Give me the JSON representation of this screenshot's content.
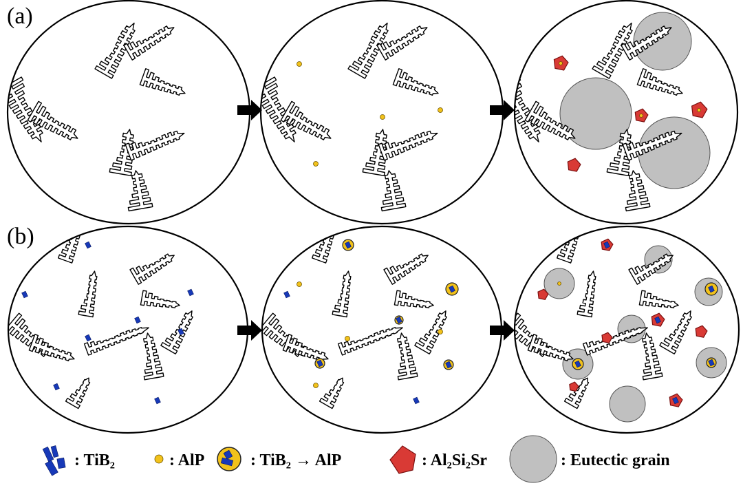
{
  "panels": [
    {
      "label": "(a)"
    },
    {
      "label": "(b)"
    }
  ],
  "legend": [
    {
      "symbol": "TiB2-particles",
      "text": ": TiB₂",
      "color": "#1739b8"
    },
    {
      "symbol": "AlP-particle",
      "text": ": AlP",
      "color": "#f2c21b"
    },
    {
      "symbol": "TiB2-on-AlP",
      "text": ": TiB₂ → AlP"
    },
    {
      "symbol": "Al2Si2Sr-pentagon",
      "text": ": Al₂Si₂Sr",
      "color": "#d93a35"
    },
    {
      "symbol": "eutectic-grain-circle",
      "text": ": Eutectic grain",
      "color": "#c0c0c0"
    }
  ]
}
